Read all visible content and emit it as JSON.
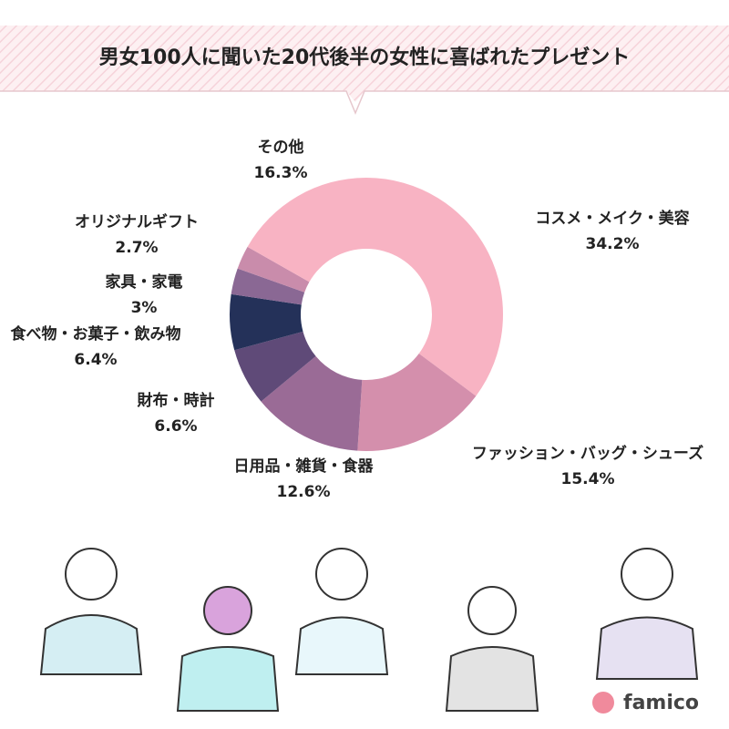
{
  "chart_data": {
    "type": "donut",
    "title": "男女100人に聞いた20代後半の女性に喜ばれたプレゼント",
    "categories": [
      "コスメ・メイク・美容",
      "ファッション・バッグ・シューズ",
      "日用品・雑貨・食器",
      "財布・時計",
      "食べ物・お菓子・飲み物",
      "家具・家電",
      "オリジナルギフト",
      "その他"
    ],
    "values": [
      34.2,
      15.4,
      12.6,
      6.6,
      6.4,
      3,
      2.7,
      16.3
    ],
    "value_labels": [
      "34.2%",
      "15.4%",
      "12.6%",
      "6.6%",
      "6.4%",
      "3%",
      "2.7%",
      "16.3%"
    ],
    "colors": [
      "#f8b3c3",
      "#d48fac",
      "#9a6b96",
      "#5f4a78",
      "#243159",
      "#8a6894",
      "#c98cab",
      "#f8b3c3"
    ]
  },
  "brand": "famico"
}
